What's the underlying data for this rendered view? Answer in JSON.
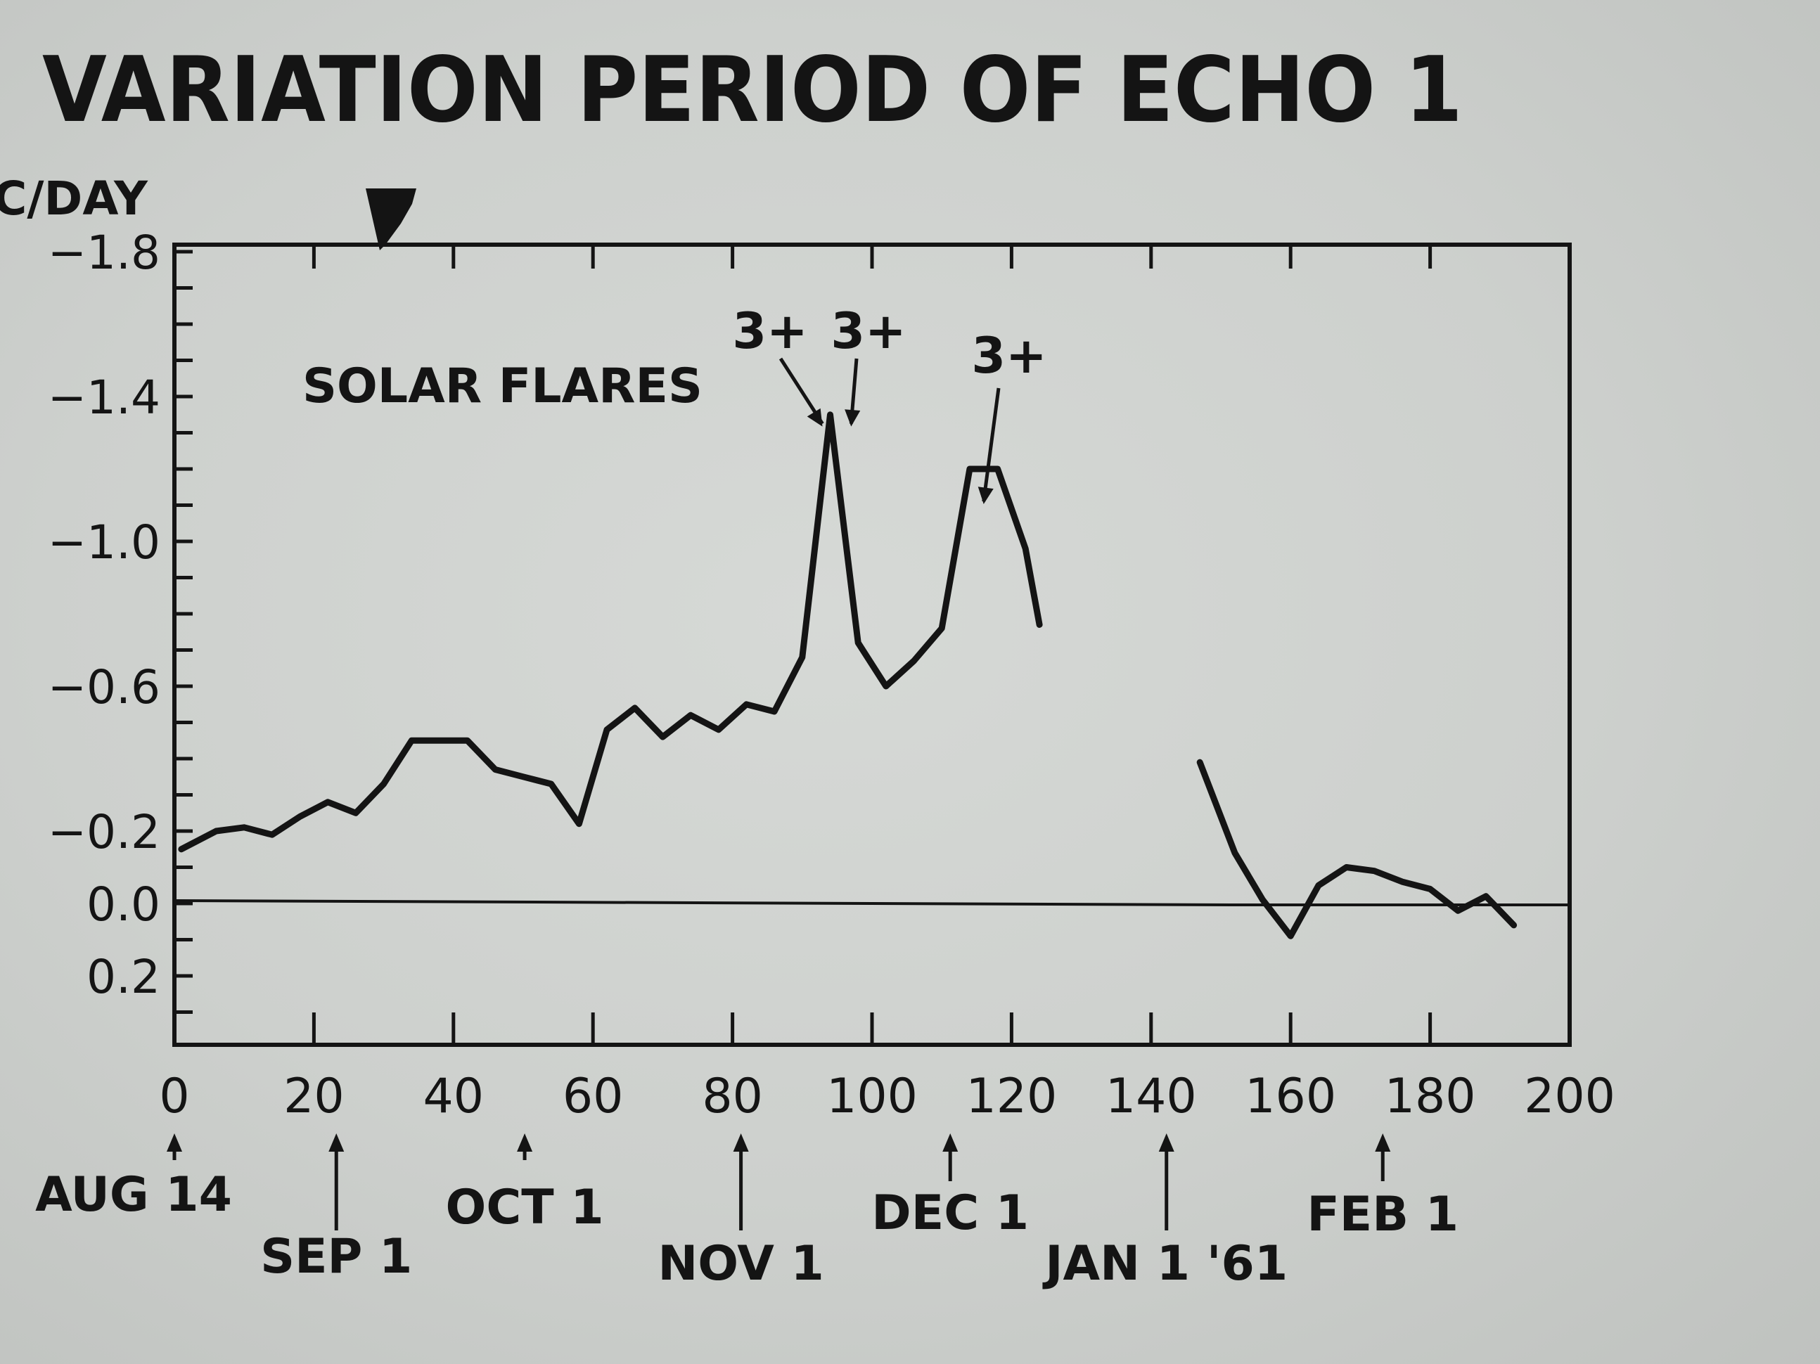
{
  "chart_data": {
    "type": "line",
    "title": "VARIATION PERIOD OF ECHO 1",
    "ylabel": "C/DAY",
    "xlim": [
      0,
      200
    ],
    "ylim": [
      0.4,
      -1.8
    ],
    "y_inverted": true,
    "x_ticks": [
      0,
      20,
      40,
      60,
      80,
      100,
      120,
      140,
      160,
      180,
      200
    ],
    "x_tick_labels": [
      "0",
      "20",
      "40",
      "60",
      "80",
      "100",
      "120",
      "140",
      "160",
      "180",
      "200"
    ],
    "y_ticks": [
      -1.8,
      -1.4,
      -1.0,
      -0.6,
      -0.2,
      0.0,
      0.2
    ],
    "y_tick_labels": [
      "−1.8",
      "−1.4",
      "−1.0",
      "−0.6",
      "−0.2",
      "0.0",
      "0.2"
    ],
    "grid": false,
    "zero_line": true,
    "series": [
      {
        "segments": [
          [
            [
              1,
              -0.15
            ],
            [
              6,
              -0.2
            ],
            [
              10,
              -0.21
            ],
            [
              14,
              -0.19
            ],
            [
              18,
              -0.24
            ],
            [
              22,
              -0.28
            ],
            [
              26,
              -0.25
            ],
            [
              30,
              -0.33
            ],
            [
              34,
              -0.45
            ],
            [
              38,
              -0.45
            ],
            [
              42,
              -0.45
            ],
            [
              46,
              -0.37
            ],
            [
              50,
              -0.35
            ],
            [
              54,
              -0.33
            ],
            [
              58,
              -0.22
            ],
            [
              62,
              -0.48
            ],
            [
              66,
              -0.54
            ],
            [
              70,
              -0.46
            ],
            [
              74,
              -0.52
            ],
            [
              78,
              -0.48
            ],
            [
              82,
              -0.55
            ],
            [
              86,
              -0.53
            ],
            [
              90,
              -0.68
            ],
            [
              94,
              -1.35
            ],
            [
              98,
              -0.72
            ],
            [
              102,
              -0.6
            ],
            [
              106,
              -0.67
            ],
            [
              110,
              -0.76
            ],
            [
              114,
              -1.2
            ],
            [
              118,
              -1.2
            ],
            [
              122,
              -0.98
            ],
            [
              124,
              -0.77
            ]
          ],
          [
            [
              147,
              -0.39
            ],
            [
              152,
              -0.14
            ],
            [
              156,
              -0.01
            ],
            [
              160,
              0.09
            ],
            [
              164,
              -0.05
            ],
            [
              168,
              -0.1
            ],
            [
              172,
              -0.09
            ],
            [
              176,
              -0.06
            ],
            [
              180,
              -0.04
            ],
            [
              184,
              0.02
            ],
            [
              188,
              -0.02
            ],
            [
              192,
              0.06
            ]
          ]
        ]
      }
    ],
    "annotations": {
      "group_label": "SOLAR FLARES",
      "flares": [
        {
          "label": "3+",
          "x": 93.5,
          "y": -1.36
        },
        {
          "label": "3+",
          "x": 96.0,
          "y": -1.36
        },
        {
          "label": "3+",
          "x": 116.0,
          "y": -1.2
        }
      ]
    },
    "date_markers": [
      {
        "x": 0,
        "label": "AUG 14"
      },
      {
        "x": 22,
        "label": "SEP 1"
      },
      {
        "x": 49,
        "label": "OCT 1"
      },
      {
        "x": 80,
        "label": "NOV 1"
      },
      {
        "x": 110,
        "label": "DEC 1"
      },
      {
        "x": 141,
        "label": "JAN 1 '61"
      },
      {
        "x": 172,
        "label": "FEB 1"
      }
    ]
  }
}
